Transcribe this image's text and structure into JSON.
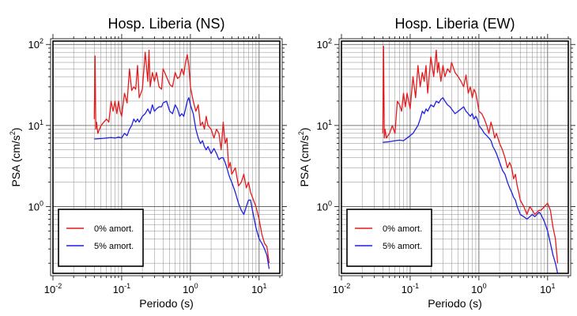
{
  "chart_data": [
    {
      "type": "line",
      "title": "Hosp. Liberia (NS)",
      "xlabel": "Periodo (s)",
      "ylabel": "PSA (cm/s2)",
      "ylabel_main": "PSA (cm/s",
      "ylabel_sup": "2",
      "ylabel_close": ")",
      "xscale": "log",
      "yscale": "log",
      "xlim": [
        0.01,
        20
      ],
      "ylim": [
        0.15,
        110
      ],
      "grid": true,
      "legend_position": "bottom-left",
      "x_ticks": [
        {
          "base": "10",
          "exp": "-2"
        },
        {
          "base": "10",
          "exp": "-1"
        },
        {
          "base": "10",
          "exp": "0"
        },
        {
          "base": "10",
          "exp": "1"
        }
      ],
      "y_ticks": [
        {
          "base": "10",
          "exp": "0"
        },
        {
          "base": "10",
          "exp": "1"
        },
        {
          "base": "10",
          "exp": "2"
        }
      ],
      "series": [
        {
          "name": "0% amort.",
          "color": "#e41a1c",
          "x": [
            0.04,
            0.041,
            0.042,
            0.043,
            0.045,
            0.05,
            0.055,
            0.06,
            0.065,
            0.07,
            0.075,
            0.08,
            0.085,
            0.09,
            0.095,
            0.1,
            0.11,
            0.12,
            0.13,
            0.14,
            0.15,
            0.16,
            0.17,
            0.18,
            0.2,
            0.22,
            0.24,
            0.25,
            0.26,
            0.28,
            0.3,
            0.32,
            0.35,
            0.38,
            0.4,
            0.45,
            0.5,
            0.55,
            0.6,
            0.65,
            0.7,
            0.75,
            0.8,
            0.85,
            0.9,
            0.95,
            1.0,
            1.1,
            1.2,
            1.3,
            1.4,
            1.5,
            1.6,
            1.7,
            1.8,
            2.0,
            2.2,
            2.4,
            2.6,
            2.8,
            3.0,
            3.2,
            3.4,
            3.6,
            3.8,
            4.0,
            4.5,
            5.0,
            5.5,
            6.0,
            6.5,
            7.0,
            7.5,
            8.0,
            9.0,
            10.0,
            11.0,
            12.0,
            13.0,
            14.0
          ],
          "y": [
            12,
            72,
            9,
            11,
            8,
            10,
            11,
            12,
            11,
            20,
            15,
            20,
            14,
            20,
            15,
            13,
            25,
            19,
            50,
            27,
            30,
            28,
            55,
            22,
            28,
            80,
            35,
            85,
            30,
            45,
            35,
            45,
            30,
            28,
            50,
            40,
            32,
            30,
            45,
            38,
            40,
            50,
            42,
            60,
            75,
            55,
            30,
            20,
            15,
            18,
            10,
            11,
            9,
            13,
            10,
            9,
            7,
            9,
            8,
            5,
            11,
            6,
            7,
            3,
            3.5,
            2.5,
            3,
            1.8,
            2,
            2.5,
            1.7,
            2,
            1.5,
            1.3,
            1,
            0.7,
            0.45,
            0.35,
            0.32,
            0.2
          ]
        },
        {
          "name": "5% amort.",
          "color": "#1f1fe0",
          "x": [
            0.04,
            0.05,
            0.06,
            0.07,
            0.08,
            0.09,
            0.1,
            0.11,
            0.12,
            0.13,
            0.14,
            0.15,
            0.16,
            0.17,
            0.18,
            0.2,
            0.22,
            0.24,
            0.26,
            0.28,
            0.3,
            0.32,
            0.35,
            0.38,
            0.4,
            0.45,
            0.5,
            0.55,
            0.6,
            0.65,
            0.7,
            0.75,
            0.8,
            0.85,
            0.9,
            0.95,
            1.0,
            1.1,
            1.2,
            1.3,
            1.4,
            1.5,
            1.6,
            1.7,
            1.8,
            2.0,
            2.2,
            2.4,
            2.6,
            2.8,
            3.0,
            3.2,
            3.4,
            3.6,
            3.8,
            4.0,
            4.5,
            5.0,
            5.5,
            6.0,
            6.5,
            7.0,
            7.5,
            8.0,
            9.0,
            10.0,
            11.0,
            12.0,
            13.0,
            14.0
          ],
          "y": [
            6.8,
            6.9,
            7,
            7.1,
            7,
            7.2,
            7,
            8,
            7.5,
            9,
            10,
            12,
            11,
            12,
            11,
            13,
            14,
            16,
            14,
            18,
            15,
            16,
            17,
            17,
            19,
            20,
            15,
            14,
            18,
            16,
            13,
            14,
            13,
            16,
            20,
            22,
            18,
            14,
            9,
            7,
            6,
            6.5,
            5.5,
            5,
            5.5,
            4.5,
            5.2,
            4.5,
            3.8,
            4,
            4,
            3.5,
            3,
            2.5,
            2.2,
            2,
            1.5,
            1.1,
            0.9,
            0.8,
            1,
            1.2,
            1.2,
            0.9,
            0.55,
            0.4,
            0.35,
            0.3,
            0.25,
            0.17
          ]
        }
      ]
    },
    {
      "type": "line",
      "title": "Hosp. Liberia (EW)",
      "xlabel": "Periodo (s)",
      "ylabel": "PSA (cm/s2)",
      "ylabel_main": "PSA (cm/s",
      "ylabel_sup": "2",
      "ylabel_close": ")",
      "xscale": "log",
      "yscale": "log",
      "xlim": [
        0.01,
        20
      ],
      "ylim": [
        0.15,
        110
      ],
      "grid": true,
      "legend_position": "bottom-left",
      "x_ticks": [
        {
          "base": "10",
          "exp": "-2"
        },
        {
          "base": "10",
          "exp": "-1"
        },
        {
          "base": "10",
          "exp": "0"
        },
        {
          "base": "10",
          "exp": "1"
        }
      ],
      "y_ticks": [
        {
          "base": "10",
          "exp": "0"
        },
        {
          "base": "10",
          "exp": "1"
        },
        {
          "base": "10",
          "exp": "2"
        }
      ],
      "series": [
        {
          "name": "0% amort.",
          "color": "#e41a1c",
          "x": [
            0.04,
            0.041,
            0.042,
            0.043,
            0.045,
            0.05,
            0.055,
            0.06,
            0.065,
            0.07,
            0.075,
            0.08,
            0.085,
            0.09,
            0.095,
            0.1,
            0.11,
            0.12,
            0.13,
            0.14,
            0.15,
            0.16,
            0.17,
            0.18,
            0.2,
            0.22,
            0.24,
            0.25,
            0.26,
            0.28,
            0.3,
            0.32,
            0.35,
            0.38,
            0.4,
            0.45,
            0.5,
            0.55,
            0.6,
            0.65,
            0.7,
            0.75,
            0.8,
            0.85,
            0.9,
            0.95,
            1.0,
            1.1,
            1.2,
            1.3,
            1.4,
            1.5,
            1.6,
            1.7,
            1.8,
            2.0,
            2.2,
            2.4,
            2.6,
            2.8,
            3.0,
            3.2,
            3.4,
            3.6,
            3.8,
            4.0,
            4.5,
            5.0,
            5.5,
            6.0,
            6.5,
            7.0,
            7.5,
            8.0,
            9.0,
            10.0,
            11.0,
            12.0,
            13.0,
            14.0
          ],
          "y": [
            8,
            95,
            7,
            9,
            7,
            8,
            10,
            8,
            20,
            18,
            15,
            25,
            17,
            25,
            20,
            16,
            40,
            22,
            55,
            30,
            45,
            35,
            55,
            25,
            70,
            40,
            85,
            45,
            60,
            35,
            55,
            40,
            50,
            45,
            60,
            45,
            40,
            35,
            30,
            42,
            25,
            30,
            22,
            28,
            25,
            20,
            15,
            14,
            12,
            10,
            8,
            11,
            9,
            7,
            8,
            6,
            5,
            4,
            3,
            3.5,
            3,
            2.2,
            2.5,
            1.8,
            1.5,
            1.2,
            1,
            0.8,
            1,
            0.9,
            0.8,
            0.85,
            0.9,
            0.9,
            1,
            1.1,
            0.9,
            0.55,
            0.4,
            0.2
          ]
        },
        {
          "name": "5% amort.",
          "color": "#1f1fe0",
          "x": [
            0.04,
            0.05,
            0.06,
            0.07,
            0.08,
            0.09,
            0.1,
            0.11,
            0.12,
            0.13,
            0.14,
            0.15,
            0.16,
            0.17,
            0.18,
            0.2,
            0.22,
            0.24,
            0.26,
            0.28,
            0.3,
            0.32,
            0.35,
            0.38,
            0.4,
            0.45,
            0.5,
            0.55,
            0.6,
            0.65,
            0.7,
            0.75,
            0.8,
            0.85,
            0.9,
            0.95,
            1.0,
            1.1,
            1.2,
            1.3,
            1.4,
            1.5,
            1.6,
            1.7,
            1.8,
            2.0,
            2.2,
            2.4,
            2.6,
            2.8,
            3.0,
            3.2,
            3.4,
            3.6,
            3.8,
            4.0,
            4.5,
            5.0,
            5.5,
            6.0,
            6.5,
            7.0,
            7.5,
            8.0,
            9.0,
            10.0,
            11.0,
            12.0,
            13.0,
            14.0
          ],
          "y": [
            6.2,
            6.3,
            6.5,
            6.6,
            6.5,
            7,
            7.5,
            8,
            9,
            10,
            12,
            15,
            14,
            16,
            15,
            18,
            17,
            20,
            19,
            21,
            22,
            20,
            18,
            17,
            16,
            14,
            15,
            16,
            17,
            15,
            14,
            13,
            14,
            12,
            13,
            12,
            10,
            9,
            8,
            7.5,
            7,
            6.5,
            5.5,
            5,
            4.5,
            3.5,
            2.8,
            2.5,
            2,
            1.7,
            1.5,
            1.3,
            1.2,
            1,
            0.9,
            0.8,
            0.75,
            0.7,
            0.75,
            0.8,
            0.75,
            0.8,
            0.85,
            0.8,
            0.65,
            0.5,
            0.35,
            0.25,
            0.2,
            0.15
          ]
        }
      ]
    }
  ]
}
